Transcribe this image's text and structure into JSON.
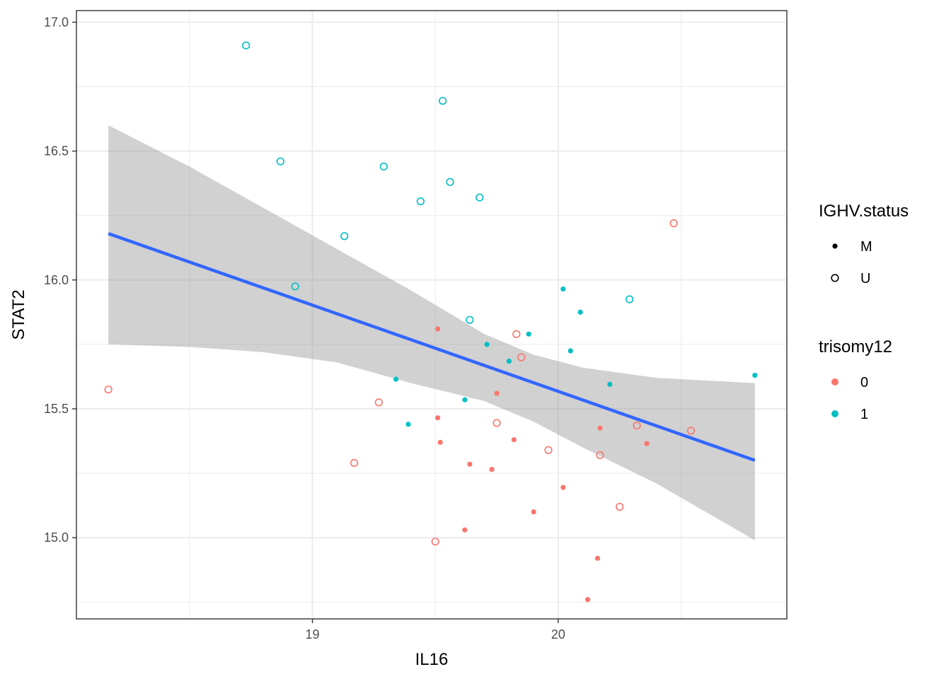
{
  "chart_data": {
    "type": "scatter",
    "title": "",
    "xlabel": "IL16",
    "ylabel": "STAT2",
    "xlim": [
      18.04,
      20.93
    ],
    "ylim": [
      14.685,
      17.045
    ],
    "x_ticks": [
      19,
      20
    ],
    "x_tick_labels": [
      "19",
      "20"
    ],
    "y_ticks": [
      15.0,
      15.5,
      16.0,
      16.5,
      17.0
    ],
    "y_tick_labels": [
      "15.0",
      "15.5",
      "16.0",
      "16.5",
      "17.0"
    ],
    "grid": true,
    "colors": {
      "trisomy12_0": "#F8766D",
      "trisomy12_1": "#00BFC4",
      "fit_line": "#3366FF",
      "confidence_band": "#999999"
    },
    "legends": [
      {
        "title": "IGHV.status",
        "entries": [
          {
            "label": "M",
            "shape": "filled-circle"
          },
          {
            "label": "U",
            "shape": "open-circle"
          }
        ]
      },
      {
        "title": "trisomy12",
        "entries": [
          {
            "label": "0",
            "color": "#F8766D"
          },
          {
            "label": "1",
            "color": "#00BFC4"
          }
        ]
      }
    ],
    "legend_position": "right",
    "fit": {
      "method": "lm",
      "line": [
        [
          18.17,
          16.18
        ],
        [
          20.8,
          15.3
        ]
      ],
      "band_upper": [
        [
          18.17,
          16.6
        ],
        [
          18.5,
          16.44
        ],
        [
          18.8,
          16.28
        ],
        [
          19.1,
          16.12
        ],
        [
          19.4,
          15.96
        ],
        [
          19.7,
          15.79
        ],
        [
          19.9,
          15.71
        ],
        [
          20.1,
          15.66
        ],
        [
          20.4,
          15.62
        ],
        [
          20.8,
          15.6
        ]
      ],
      "band_lower": [
        [
          18.17,
          15.75
        ],
        [
          18.5,
          15.74
        ],
        [
          18.8,
          15.72
        ],
        [
          19.1,
          15.68
        ],
        [
          19.4,
          15.6
        ],
        [
          19.7,
          15.53
        ],
        [
          19.9,
          15.45
        ],
        [
          20.1,
          15.35
        ],
        [
          20.4,
          15.21
        ],
        [
          20.8,
          14.99
        ]
      ]
    },
    "series": [
      {
        "name": "trisomy12=0, IGHV=M",
        "trisomy12": "0",
        "ighv": "M",
        "points": [
          [
            19.51,
            15.81
          ],
          [
            19.51,
            15.465
          ],
          [
            19.52,
            15.37
          ],
          [
            19.64,
            15.285
          ],
          [
            19.62,
            15.03
          ],
          [
            19.73,
            15.265
          ],
          [
            19.75,
            15.56
          ],
          [
            19.82,
            15.38
          ],
          [
            19.9,
            15.1
          ],
          [
            20.02,
            15.195
          ],
          [
            20.16,
            14.92
          ],
          [
            20.17,
            15.425
          ],
          [
            20.12,
            14.76
          ],
          [
            20.36,
            15.365
          ]
        ]
      },
      {
        "name": "trisomy12=0, IGHV=U",
        "trisomy12": "0",
        "ighv": "U",
        "points": [
          [
            18.17,
            15.575
          ],
          [
            19.17,
            15.29
          ],
          [
            19.27,
            15.525
          ],
          [
            19.5,
            14.985
          ],
          [
            19.75,
            15.445
          ],
          [
            19.83,
            15.79
          ],
          [
            19.85,
            15.7
          ],
          [
            19.96,
            15.34
          ],
          [
            20.17,
            15.32
          ],
          [
            20.25,
            15.12
          ],
          [
            20.32,
            15.435
          ],
          [
            20.47,
            16.22
          ],
          [
            20.54,
            15.415
          ]
        ]
      },
      {
        "name": "trisomy12=1, IGHV=M",
        "trisomy12": "1",
        "ighv": "M",
        "points": [
          [
            19.34,
            15.615
          ],
          [
            19.39,
            15.44
          ],
          [
            19.62,
            15.535
          ],
          [
            19.71,
            15.75
          ],
          [
            19.8,
            15.685
          ],
          [
            19.88,
            15.79
          ],
          [
            20.02,
            15.965
          ],
          [
            20.05,
            15.725
          ],
          [
            20.09,
            15.875
          ],
          [
            20.21,
            15.595
          ],
          [
            20.8,
            15.63
          ]
        ]
      },
      {
        "name": "trisomy12=1, IGHV=U",
        "trisomy12": "1",
        "ighv": "U",
        "points": [
          [
            18.73,
            16.91
          ],
          [
            18.87,
            16.46
          ],
          [
            18.93,
            15.975
          ],
          [
            19.13,
            16.17
          ],
          [
            19.29,
            16.44
          ],
          [
            19.44,
            16.305
          ],
          [
            19.53,
            16.695
          ],
          [
            19.56,
            16.38
          ],
          [
            19.64,
            15.845
          ],
          [
            19.68,
            16.32
          ],
          [
            20.29,
            15.925
          ]
        ]
      }
    ]
  }
}
